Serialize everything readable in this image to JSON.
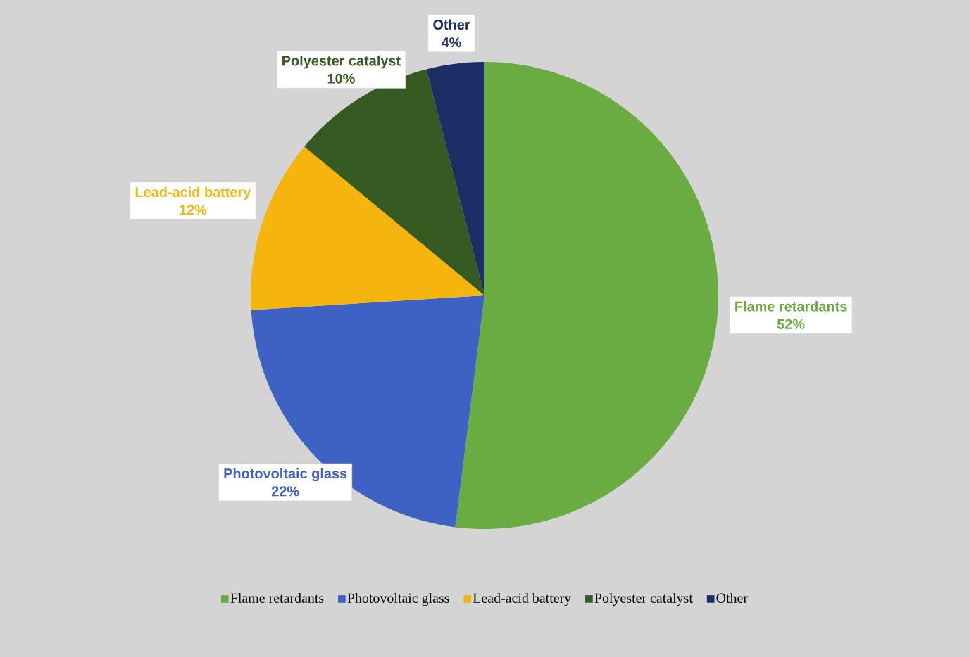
{
  "chart_data": {
    "type": "pie",
    "categories": [
      "Flame retardants",
      "Photovoltaic glass",
      "Lead-acid battery",
      "Polyester catalyst",
      "Other"
    ],
    "values": [
      52,
      22,
      12,
      10,
      4
    ],
    "colors": [
      "#6aab42",
      "#3d62c4",
      "#f6b40e",
      "#365b22",
      "#1e2d66"
    ],
    "value_labels": [
      "52%",
      "22%",
      "12%",
      "10%",
      "4%"
    ],
    "legend": "bottom"
  }
}
